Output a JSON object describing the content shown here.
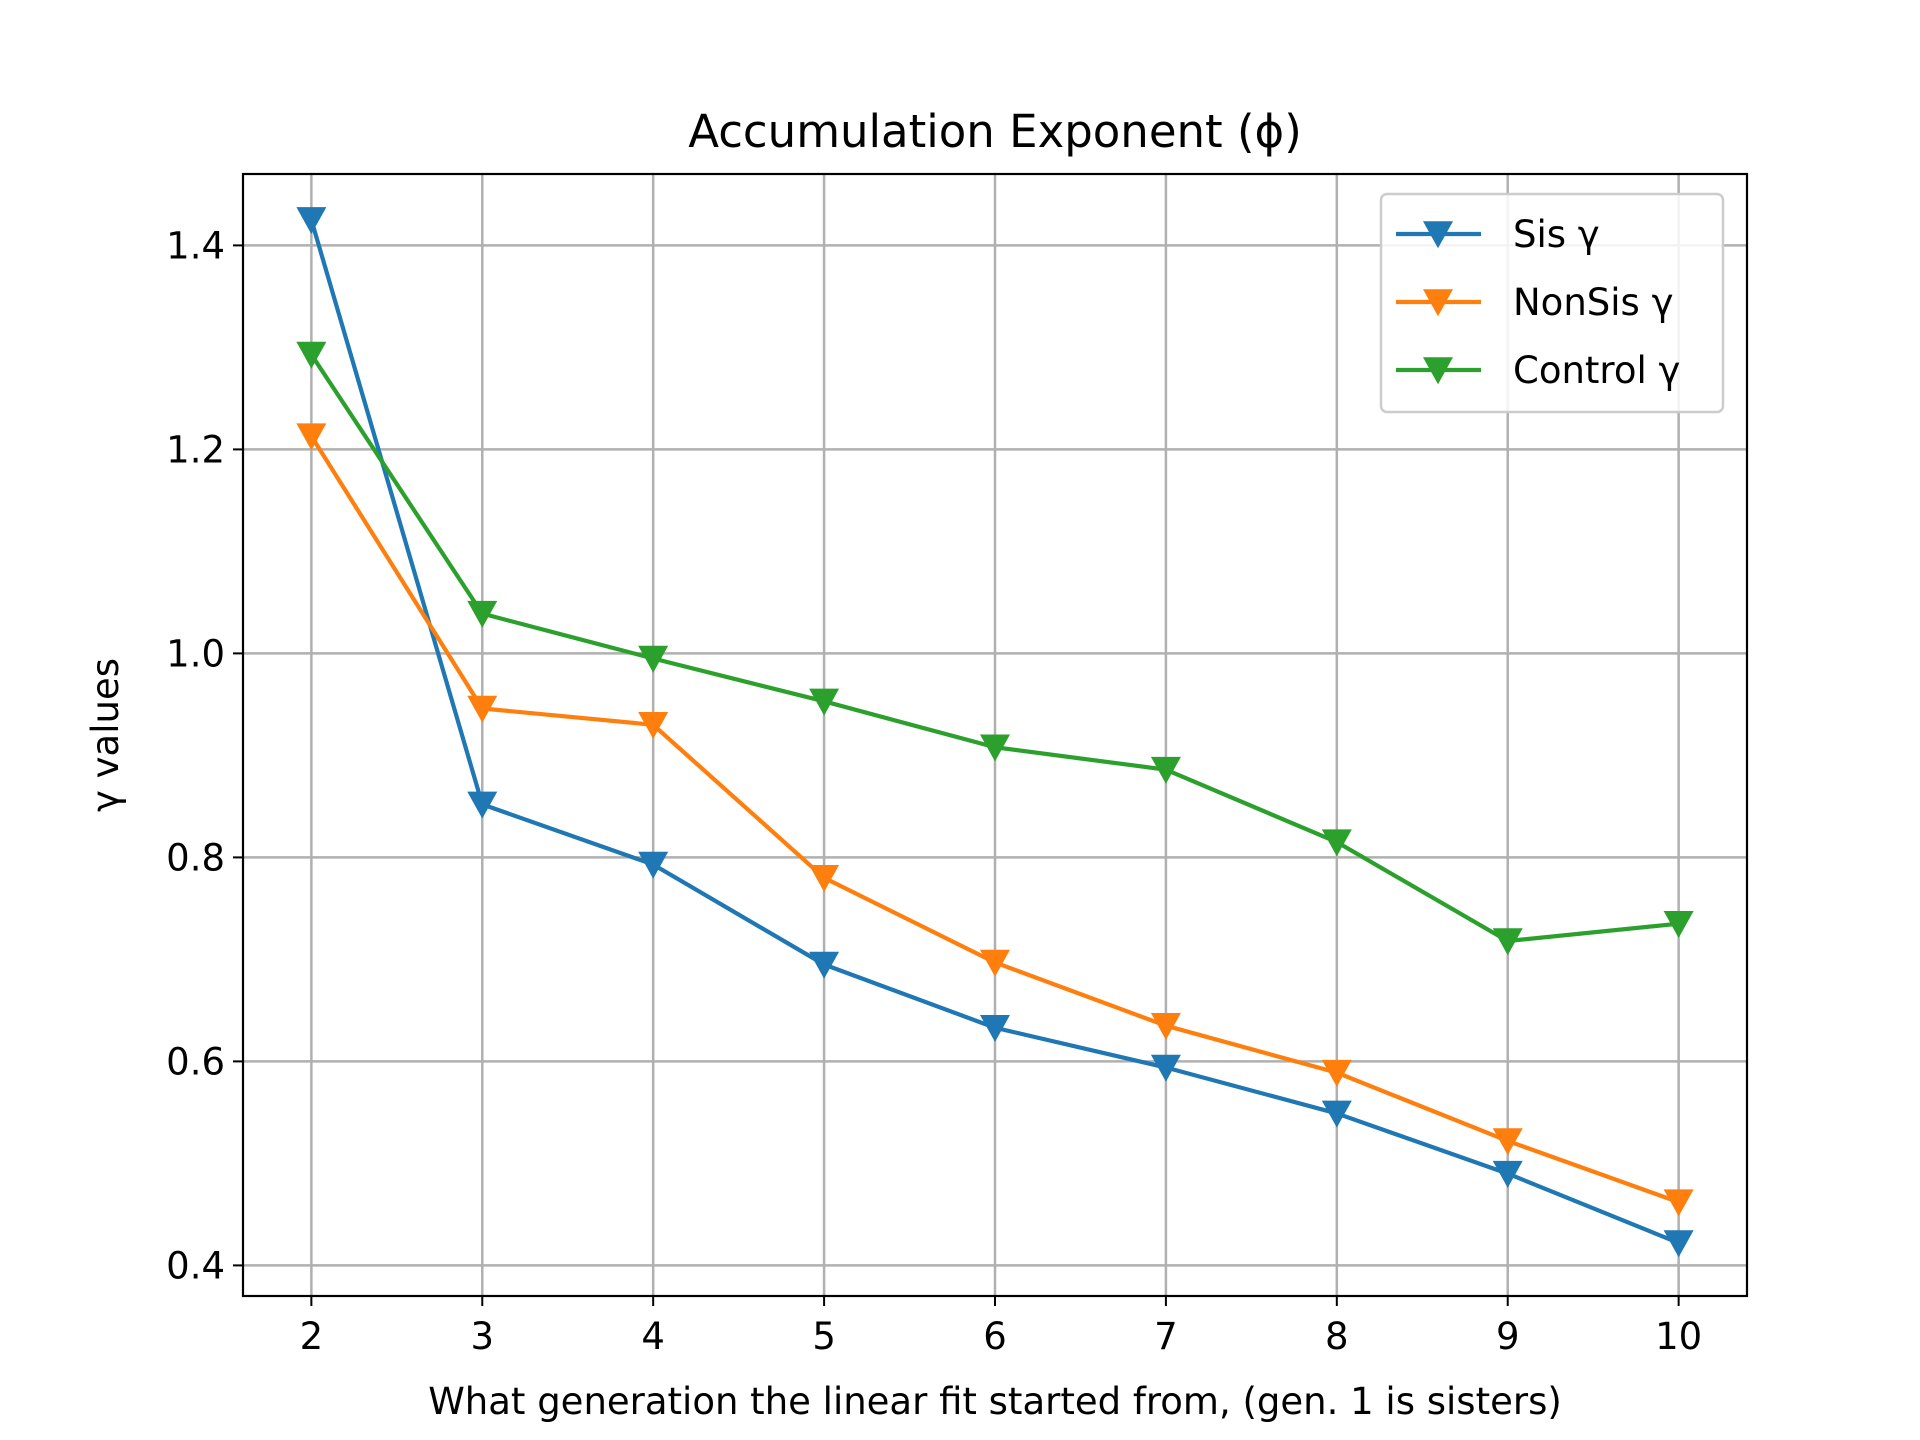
{
  "chart_data": {
    "type": "line",
    "title": "Accumulation Exponent (ϕ)",
    "xlabel": "What generation the linear fit started from, (gen. 1 is sisters)",
    "ylabel": "γ values",
    "x": [
      2,
      3,
      4,
      5,
      6,
      7,
      8,
      9,
      10
    ],
    "xlim": [
      1.6,
      10.4
    ],
    "ylim": [
      0.37,
      1.47
    ],
    "xticks": [
      "2",
      "3",
      "4",
      "5",
      "6",
      "7",
      "8",
      "9",
      "10"
    ],
    "yticks": [
      "0.4",
      "0.6",
      "0.8",
      "1.0",
      "1.2",
      "1.4"
    ],
    "ytick_values": [
      0.4,
      0.6,
      0.8,
      1.0,
      1.2,
      1.4
    ],
    "grid": true,
    "legend_position": "top-right",
    "marker": "down-triangle",
    "series": [
      {
        "name": "Sis γ",
        "color": "#1f77b4",
        "values": [
          1.425,
          0.852,
          0.793,
          0.695,
          0.633,
          0.594,
          0.549,
          0.49,
          0.422
        ]
      },
      {
        "name": "NonSis γ",
        "color": "#ff7f0e",
        "values": [
          1.213,
          0.946,
          0.93,
          0.78,
          0.697,
          0.635,
          0.589,
          0.522,
          0.462
        ]
      },
      {
        "name": "Control γ",
        "color": "#2ca02c",
        "values": [
          1.293,
          1.039,
          0.995,
          0.953,
          0.908,
          0.886,
          0.815,
          0.718,
          0.735
        ]
      }
    ]
  }
}
